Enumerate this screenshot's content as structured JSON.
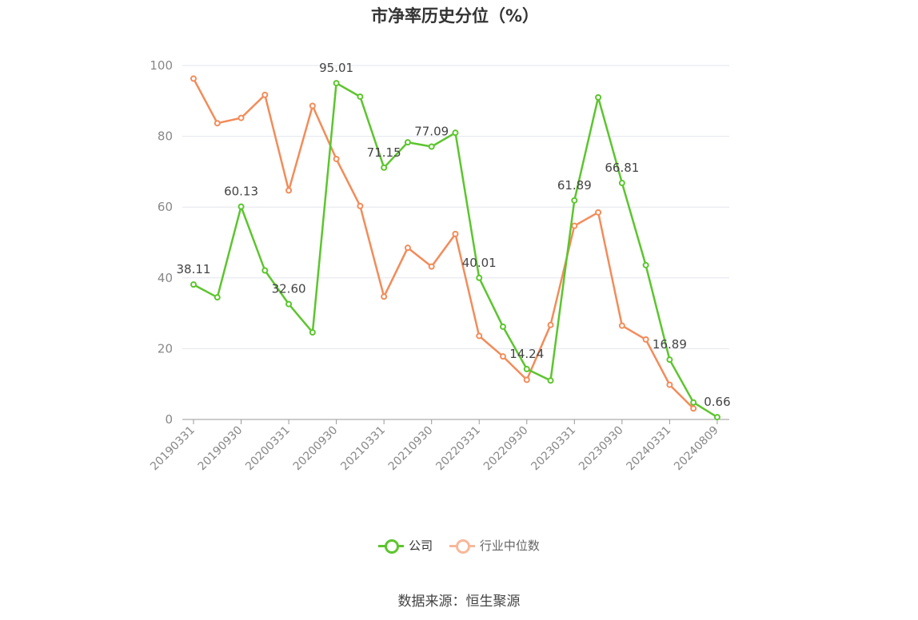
{
  "chart_data": {
    "type": "line",
    "title": "市净率历史分位（%）",
    "xlabel": "",
    "ylabel": "",
    "ylim": [
      0,
      100
    ],
    "yticks": [
      0,
      20,
      40,
      60,
      80,
      100
    ],
    "grid": true,
    "legend_position": "bottom",
    "categories": [
      "20190331",
      "20190630",
      "20190930",
      "20191231",
      "20200331",
      "20200630",
      "20200930",
      "20201231",
      "20210331",
      "20210630",
      "20210930",
      "20211231",
      "20220331",
      "20220630",
      "20220930",
      "20221231",
      "20230331",
      "20230630",
      "20230930",
      "20231231",
      "20240331",
      "20240630",
      "20240809"
    ],
    "x_tick_labels": [
      "20190331",
      "20190930",
      "20200331",
      "20200930",
      "20210331",
      "20210930",
      "20220331",
      "20220930",
      "20230331",
      "20230930",
      "20240331",
      "20240809"
    ],
    "series": [
      {
        "name": "公司",
        "color": "#5cc52e",
        "values": [
          38.11,
          34.5,
          60.13,
          42.1,
          32.6,
          24.6,
          95.01,
          91.2,
          71.15,
          78.3,
          77.09,
          81.0,
          40.01,
          26.2,
          14.24,
          11.0,
          61.89,
          91.0,
          66.81,
          43.6,
          16.89,
          4.8,
          0.66
        ],
        "labels": [
          "38.11",
          null,
          "60.13",
          null,
          "32.60",
          null,
          "95.01",
          null,
          "71.15",
          null,
          "77.09",
          null,
          "40.01",
          null,
          "14.24",
          null,
          "61.89",
          null,
          "66.81",
          null,
          "16.89",
          null,
          "0.66"
        ]
      },
      {
        "name": "行业中位数",
        "color": "#f28c5a",
        "values": [
          96.3,
          83.7,
          85.2,
          91.7,
          64.7,
          88.6,
          73.6,
          60.3,
          34.7,
          48.5,
          43.2,
          52.4,
          23.6,
          17.8,
          11.2,
          26.7,
          54.7,
          58.5,
          26.5,
          22.6,
          9.8,
          3.1,
          null
        ]
      }
    ]
  },
  "legend": {
    "items": [
      {
        "label": "公司",
        "color": "#5cc52e"
      },
      {
        "label": "行业中位数",
        "color": "#f7b89a"
      }
    ]
  },
  "footer": {
    "source": "数据来源：恒生聚源"
  },
  "style": {
    "axis_color": "#999999",
    "grid_color": "#e3e6ee",
    "tick_text_color": "#888888",
    "label_color": "#444444"
  }
}
